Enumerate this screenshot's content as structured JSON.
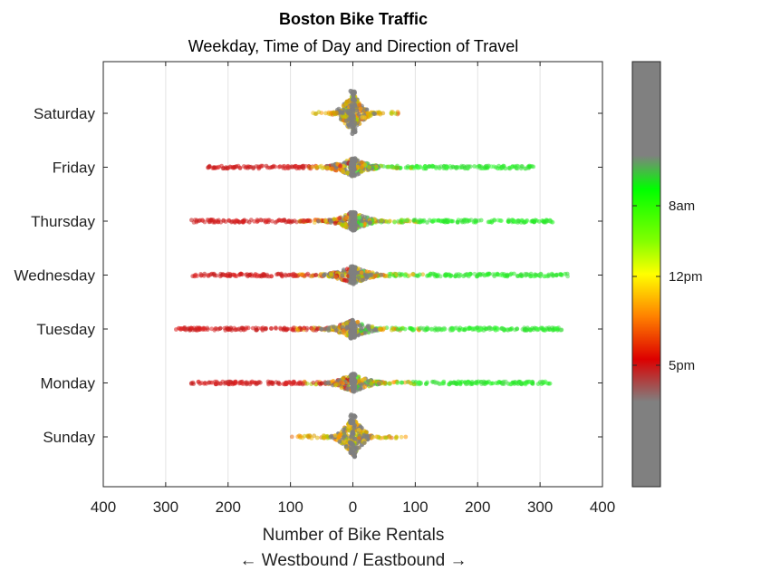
{
  "chart_data": {
    "type": "scatter",
    "title": "Boston Bike Traffic",
    "subtitle": "Weekday, Time of Day and Direction of Travel",
    "xlabel": "Number of Bike Rentals",
    "xlabel2": "← Westbound / Eastbound →",
    "xlim": [
      -400,
      400
    ],
    "xticks": [
      -400,
      -300,
      -200,
      -100,
      0,
      100,
      200,
      300,
      400
    ],
    "xtick_labels": [
      "400",
      "300",
      "200",
      "100",
      "0",
      "100",
      "200",
      "300",
      "400"
    ],
    "categories": [
      "Sunday",
      "Monday",
      "Tuesday",
      "Wednesday",
      "Thursday",
      "Friday",
      "Saturday"
    ],
    "grid": "vertical",
    "colorbar": {
      "labels": [
        "8am",
        "12pm",
        "5pm"
      ],
      "stops": [
        {
          "pos": 0.0,
          "color": "#808080"
        },
        {
          "pos": 0.22,
          "color": "#808080"
        },
        {
          "pos": 0.3,
          "color": "#00ff00"
        },
        {
          "pos": 0.42,
          "color": "#80ff00"
        },
        {
          "pos": 0.5,
          "color": "#ffff00"
        },
        {
          "pos": 0.6,
          "color": "#ff8000"
        },
        {
          "pos": 0.7,
          "color": "#dd0000"
        },
        {
          "pos": 0.8,
          "color": "#808080"
        },
        {
          "pos": 1.0,
          "color": "#808080"
        }
      ]
    },
    "days": [
      {
        "name": "Sunday",
        "west_max": 100,
        "east_max": 85,
        "west_core": 40,
        "east_core": 35,
        "weekend": true
      },
      {
        "name": "Monday",
        "west_max": 260,
        "east_max": 320,
        "west_core": 150,
        "east_core": 180,
        "weekend": false
      },
      {
        "name": "Tuesday",
        "west_max": 285,
        "east_max": 335,
        "west_core": 170,
        "east_core": 200,
        "weekend": false
      },
      {
        "name": "Wednesday",
        "west_max": 260,
        "east_max": 345,
        "west_core": 165,
        "east_core": 210,
        "weekend": false
      },
      {
        "name": "Thursday",
        "west_max": 265,
        "east_max": 320,
        "west_core": 160,
        "east_core": 190,
        "weekend": false
      },
      {
        "name": "Friday",
        "west_max": 235,
        "east_max": 290,
        "west_core": 140,
        "east_core": 180,
        "weekend": false
      },
      {
        "name": "Saturday",
        "west_max": 65,
        "east_max": 80,
        "west_core": 35,
        "east_core": 40,
        "weekend": true
      }
    ]
  }
}
